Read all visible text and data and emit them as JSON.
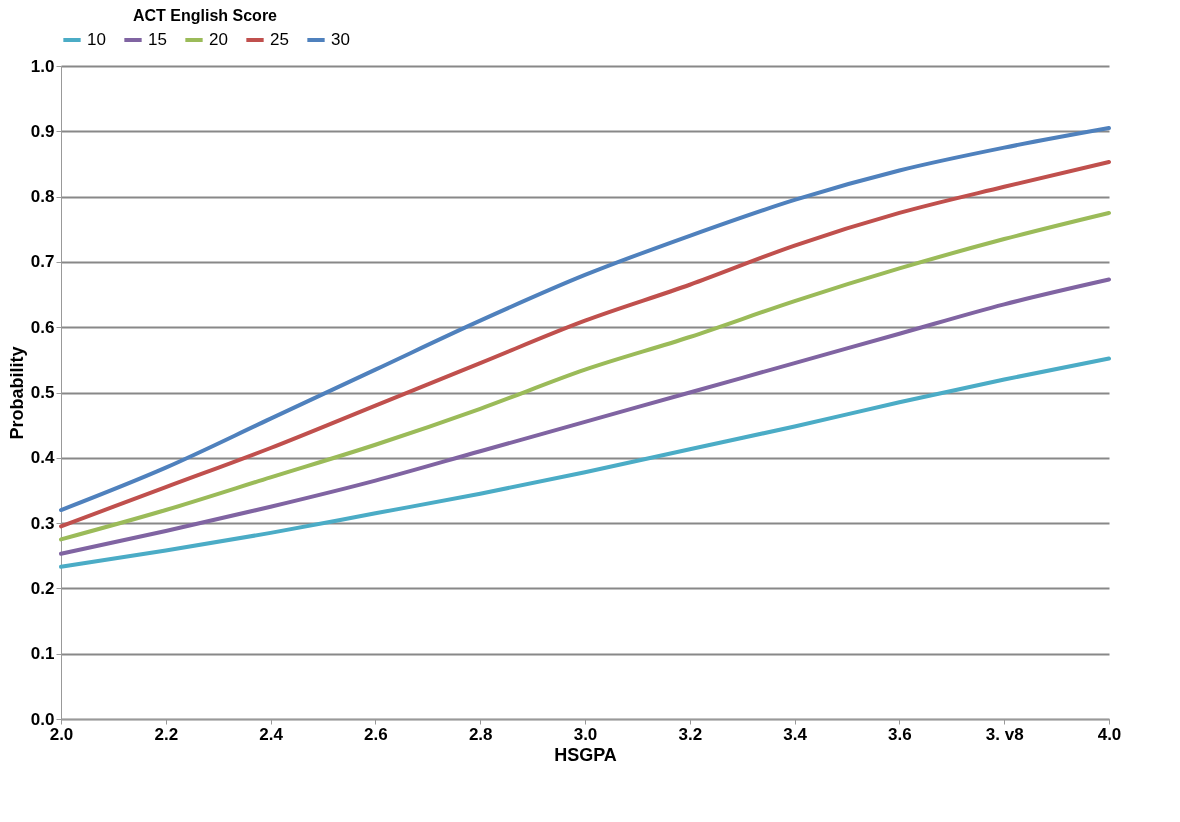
{
  "chart_data": {
    "type": "line",
    "legend_title": "ACT English Score",
    "xlabel": "HSGPA",
    "ylabel": "Probability",
    "x": [
      2.0,
      2.2,
      2.4,
      2.6,
      2.8,
      3.0,
      3.2,
      3.4,
      3.6,
      3.8,
      4.0
    ],
    "series": [
      {
        "name": "10",
        "color": "#4bacc6",
        "values": [
          0.233,
          0.258,
          0.285,
          0.315,
          0.345,
          0.378,
          0.413,
          0.448,
          0.485,
          0.52,
          0.552
        ]
      },
      {
        "name": "15",
        "color": "#8064a2",
        "values": [
          0.253,
          0.288,
          0.325,
          0.365,
          0.41,
          0.455,
          0.5,
          0.545,
          0.59,
          0.635,
          0.673
        ]
      },
      {
        "name": "20",
        "color": "#9bbb59",
        "values": [
          0.275,
          0.32,
          0.37,
          0.42,
          0.475,
          0.535,
          0.585,
          0.64,
          0.69,
          0.735,
          0.775
        ]
      },
      {
        "name": "25",
        "color": "#c0504d",
        "values": [
          0.295,
          0.355,
          0.415,
          0.48,
          0.545,
          0.61,
          0.665,
          0.725,
          0.775,
          0.815,
          0.853
        ]
      },
      {
        "name": "30",
        "color": "#4f81bd",
        "values": [
          0.32,
          0.385,
          0.46,
          0.535,
          0.61,
          0.68,
          0.74,
          0.795,
          0.84,
          0.875,
          0.905
        ]
      }
    ],
    "xlim": [
      2.0,
      4.0
    ],
    "xticks": [
      {
        "value": 2.0,
        "label": "2.0"
      },
      {
        "value": 2.2,
        "label": "2.2"
      },
      {
        "value": 2.4,
        "label": "2.4"
      },
      {
        "value": 2.6,
        "label": "2.6"
      },
      {
        "value": 2.8,
        "label": "2.8"
      },
      {
        "value": 3.0,
        "label": "3.0"
      },
      {
        "value": 3.2,
        "label": "3.2"
      },
      {
        "value": 3.4,
        "label": "3.4"
      },
      {
        "value": 3.6,
        "label": "3.6"
      },
      {
        "value": 3.8,
        "label": "3. v8"
      },
      {
        "value": 4.0,
        "label": "4.0"
      }
    ],
    "ylim": [
      0.0,
      1.0
    ],
    "yticks": [
      {
        "value": 0.0,
        "label": "0.0"
      },
      {
        "value": 0.1,
        "label": "0.1"
      },
      {
        "value": 0.2,
        "label": "0.2"
      },
      {
        "value": 0.3,
        "label": "0.3"
      },
      {
        "value": 0.4,
        "label": "0.4"
      },
      {
        "value": 0.5,
        "label": "0.5"
      },
      {
        "value": 0.6,
        "label": "0.6"
      },
      {
        "value": 0.7,
        "label": "0.7"
      },
      {
        "value": 0.8,
        "label": "0.8"
      },
      {
        "value": 0.9,
        "label": "0.9"
      },
      {
        "value": 1.0,
        "label": "1.0"
      }
    ],
    "grid": "y",
    "legend": "top",
    "marker": "none",
    "line_style": "solid"
  }
}
